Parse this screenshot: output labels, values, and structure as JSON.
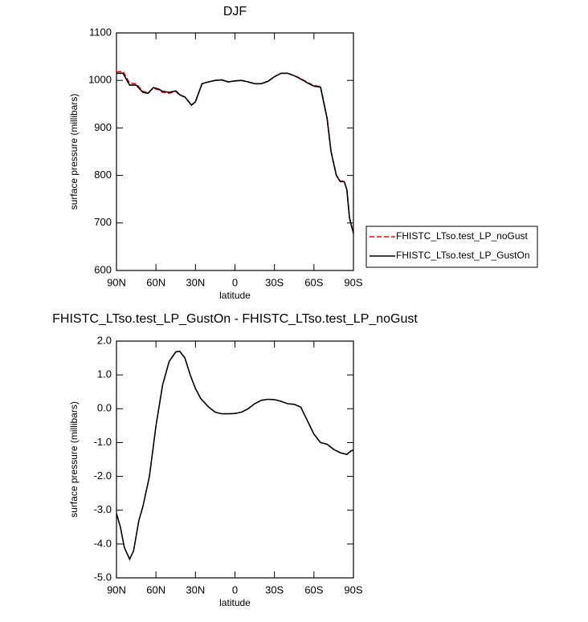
{
  "chart_data": [
    {
      "type": "line",
      "title": "DJF",
      "xlabel": "latitude",
      "ylabel": "surface pressure (millibars)",
      "x": [
        90,
        85,
        80,
        75,
        70,
        66,
        62,
        58,
        55,
        50,
        45,
        42,
        38,
        33,
        30,
        25,
        20,
        15,
        10,
        5,
        0,
        -5,
        -10,
        -15,
        -20,
        -25,
        -30,
        -35,
        -40,
        -45,
        -50,
        -55,
        -60,
        -65,
        -70,
        -73,
        -77,
        -80,
        -83,
        -85,
        -87,
        -90
      ],
      "series": [
        {
          "name": "FHISTC_LTso.test_LP_noGust",
          "color": "#ff0000",
          "dash": true,
          "values": [
            1018,
            1019,
            994,
            993,
            977,
            974,
            984,
            980,
            975,
            973,
            977,
            969,
            965,
            948,
            955,
            993,
            997,
            1000,
            1001,
            997,
            999,
            1000,
            997,
            993,
            993,
            998,
            1008,
            1015,
            1015,
            1010,
            1004,
            996,
            989,
            987,
            921,
            851,
            801,
            788,
            788,
            771,
            711,
            679
          ]
        },
        {
          "name": "FHISTC_LTso.test_LP_GustOn",
          "color": "#000000",
          "dash": false,
          "values": [
            1015,
            1015,
            990,
            990,
            975,
            973,
            985,
            982,
            977,
            975,
            978,
            970,
            965,
            948,
            955,
            993,
            997,
            1000,
            1001,
            997,
            999,
            1000,
            997,
            993,
            993,
            998,
            1008,
            1015,
            1015,
            1010,
            1003,
            995,
            988,
            986,
            920,
            850,
            800,
            787,
            787,
            770,
            710,
            678
          ]
        }
      ],
      "xlim": [
        90,
        -90
      ],
      "xticks": [
        {
          "value": 90,
          "label": "90N"
        },
        {
          "value": 60,
          "label": "60N"
        },
        {
          "value": 30,
          "label": "30N"
        },
        0,
        {
          "value": -30,
          "label": "30S"
        },
        {
          "value": -60,
          "label": "60S"
        },
        {
          "value": -90,
          "label": "90S"
        }
      ],
      "ylim": [
        600,
        1100
      ],
      "yticks": [
        600,
        700,
        800,
        900,
        1000,
        1100
      ],
      "legend": "outside-right"
    },
    {
      "type": "line",
      "title": "FHISTC_LTso.test_LP_GustOn - FHISTC_LTso.test_LP_noGust",
      "xlabel": "latitude",
      "ylabel": "surface pressure (millibars)",
      "x": [
        90,
        87,
        84,
        80,
        77,
        73,
        70,
        65,
        60,
        55,
        50,
        45,
        42,
        38,
        34,
        30,
        26,
        20,
        15,
        10,
        5,
        0,
        -5,
        -10,
        -15,
        -20,
        -25,
        -30,
        -35,
        -40,
        -45,
        -50,
        -55,
        -60,
        -65,
        -70,
        -75,
        -80,
        -85,
        -88,
        -90
      ],
      "values": [
        -3.1,
        -3.5,
        -4.1,
        -4.45,
        -4.2,
        -3.3,
        -2.9,
        -2.0,
        -0.5,
        0.7,
        1.4,
        1.68,
        1.7,
        1.5,
        1.0,
        0.6,
        0.3,
        0.05,
        -0.1,
        -0.15,
        -0.15,
        -0.14,
        -0.1,
        0.0,
        0.15,
        0.25,
        0.28,
        0.27,
        0.22,
        0.15,
        0.13,
        0.05,
        -0.35,
        -0.75,
        -1.0,
        -1.05,
        -1.2,
        -1.3,
        -1.35,
        -1.25,
        -1.22
      ],
      "color": "#000000",
      "xlim": [
        90,
        -90
      ],
      "xticks": [
        {
          "value": 90,
          "label": "90N"
        },
        {
          "value": 60,
          "label": "60N"
        },
        {
          "value": 30,
          "label": "30N"
        },
        0,
        {
          "value": -30,
          "label": "30S"
        },
        {
          "value": -60,
          "label": "60S"
        },
        {
          "value": -90,
          "label": "90S"
        }
      ],
      "ylim": [
        -5,
        2
      ],
      "yticks": [
        {
          "value": -5,
          "label": "-5.0"
        },
        {
          "value": -4,
          "label": "-4.0"
        },
        {
          "value": -3,
          "label": "-3.0"
        },
        {
          "value": -2,
          "label": "-2.0"
        },
        {
          "value": -1,
          "label": "-1.0"
        },
        {
          "value": 0,
          "label": "0.0"
        },
        {
          "value": 1,
          "label": "1.0"
        },
        {
          "value": 2,
          "label": "2.0"
        }
      ]
    }
  ]
}
